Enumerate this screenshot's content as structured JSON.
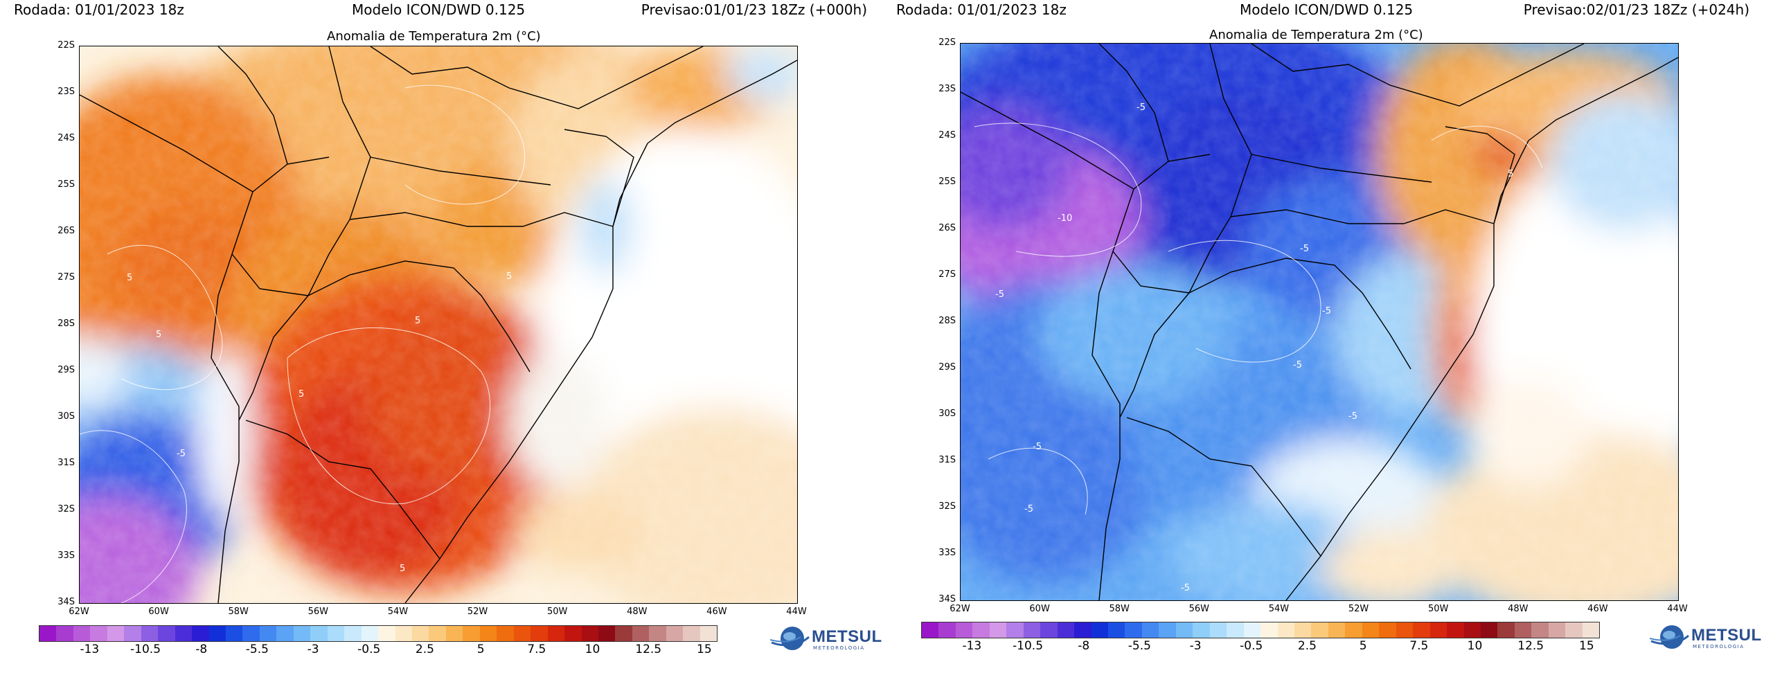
{
  "panels": [
    {
      "run": "Rodada: 01/01/2023 18z",
      "model": "Modelo ICON/DWD 0.125",
      "forecast": "Previsao:01/01/23 18Zz (+000h)",
      "title": "Anomalia de Temperatura 2m (°C)",
      "contour_labels": [
        "5",
        "5",
        "5",
        "5",
        "5",
        "5",
        "-5"
      ]
    },
    {
      "run": "Rodada: 01/01/2023 18z",
      "model": "Modelo ICON/DWD 0.125",
      "forecast": "Previsao:02/01/23 18Zz (+024h)",
      "title": "Anomalia de Temperatura 2m (°C)",
      "contour_labels": [
        "-5",
        "-10",
        "-5",
        "-5",
        "-5",
        "-5",
        "-5",
        "-5",
        "-5",
        "-5",
        "5"
      ]
    }
  ],
  "lat_labels": [
    "22S",
    "23S",
    "24S",
    "25S",
    "26S",
    "27S",
    "28S",
    "29S",
    "30S",
    "31S",
    "32S",
    "33S",
    "34S"
  ],
  "lon_labels": [
    "62W",
    "60W",
    "58W",
    "56W",
    "54W",
    "52W",
    "50W",
    "48W",
    "46W",
    "44W"
  ],
  "colorbar": {
    "ticks": [
      "-13",
      "-10.5",
      "-8",
      "-5.5",
      "-3",
      "-0.5",
      "2.5",
      "5",
      "7.5",
      "10",
      "12.5",
      "15"
    ],
    "colors": [
      "#9a17c9",
      "#a93cd0",
      "#b85bd8",
      "#c77be0",
      "#d498e8",
      "#b37fe8",
      "#8d5fe3",
      "#6b45de",
      "#4b2ed8",
      "#2a1dd3",
      "#1230d9",
      "#1b4fe3",
      "#2e6ced",
      "#4489f2",
      "#5aa3f5",
      "#73baf7",
      "#8fcef9",
      "#acdcfb",
      "#c9e9fc",
      "#e4f4fd",
      "#fdf4e2",
      "#fce8c4",
      "#fbd9a0",
      "#fbc97a",
      "#f9b554",
      "#f79d32",
      "#f48518",
      "#ef6d0e",
      "#ea540c",
      "#e33c0d",
      "#d6260e",
      "#c31510",
      "#a90e12",
      "#8e0a14",
      "#9a3a3a",
      "#b06060",
      "#c48585",
      "#d6a7a5",
      "#e6c7c0",
      "#f2e2d6"
    ]
  },
  "logo": {
    "name": "METSUL",
    "sub": "METEOROLOGIA"
  }
}
